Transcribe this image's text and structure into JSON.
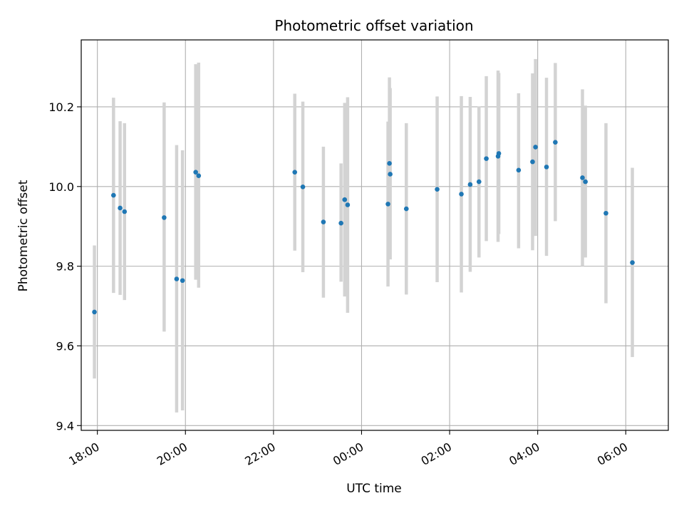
{
  "chart_data": {
    "type": "scatter",
    "title": "Photometric offset variation",
    "xlabel": "UTC time",
    "ylabel": "Photometric offset",
    "x_unit": "UTC time",
    "xlim": [
      "17:38",
      "06:58 (+1 day)"
    ],
    "ylim": [
      9.388,
      10.368
    ],
    "x_ticks": [
      "18:00",
      "20:00",
      "22:00",
      "00:00",
      "02:00",
      "04:00",
      "06:00"
    ],
    "y_ticks": [
      "9.4",
      "9.6",
      "9.8",
      "10.0",
      "10.2"
    ],
    "grid": true,
    "legend": "none",
    "colors": {
      "point": "#1f77b4",
      "errorbar": "#d3d3d3",
      "grid": "#b0b0b0"
    },
    "points": [
      {
        "x": "17:56",
        "y": 9.685,
        "lo": 9.518,
        "hi": 9.852
      },
      {
        "x": "18:22",
        "y": 9.978,
        "lo": 9.733,
        "hi": 10.223
      },
      {
        "x": "18:31",
        "y": 9.946,
        "lo": 9.728,
        "hi": 10.164
      },
      {
        "x": "18:37",
        "y": 9.937,
        "lo": 9.715,
        "hi": 10.159
      },
      {
        "x": "19:31",
        "y": 9.922,
        "lo": 9.636,
        "hi": 10.211
      },
      {
        "x": "19:48",
        "y": 9.768,
        "lo": 9.433,
        "hi": 10.104
      },
      {
        "x": "19:56",
        "y": 9.764,
        "lo": 9.438,
        "hi": 10.091
      },
      {
        "x": "20:14",
        "y": 10.036,
        "lo": 9.766,
        "hi": 10.307
      },
      {
        "x": "20:18",
        "y": 10.027,
        "lo": 9.746,
        "hi": 10.311
      },
      {
        "x": "22:29",
        "y": 10.036,
        "lo": 9.839,
        "hi": 10.233
      },
      {
        "x": "22:40",
        "y": 9.999,
        "lo": 9.785,
        "hi": 10.213
      },
      {
        "x": "23:08",
        "y": 9.911,
        "lo": 9.721,
        "hi": 10.1
      },
      {
        "x": "23:32",
        "y": 9.908,
        "lo": 9.761,
        "hi": 10.058
      },
      {
        "x": "23:37",
        "y": 9.967,
        "lo": 9.724,
        "hi": 10.21
      },
      {
        "x": "23:41",
        "y": 9.954,
        "lo": 9.683,
        "hi": 10.224
      },
      {
        "x": "00:36",
        "y": 9.956,
        "lo": 9.749,
        "hi": 10.163
      },
      {
        "x": "00:38",
        "y": 10.058,
        "lo": 9.842,
        "hi": 10.274
      },
      {
        "x": "00:39",
        "y": 10.031,
        "lo": 9.817,
        "hi": 10.247
      },
      {
        "x": "01:01",
        "y": 9.944,
        "lo": 9.729,
        "hi": 10.159
      },
      {
        "x": "01:43",
        "y": 9.993,
        "lo": 9.76,
        "hi": 10.226
      },
      {
        "x": "02:16",
        "y": 9.981,
        "lo": 9.734,
        "hi": 10.227
      },
      {
        "x": "02:28",
        "y": 10.005,
        "lo": 9.786,
        "hi": 10.225
      },
      {
        "x": "02:40",
        "y": 10.012,
        "lo": 9.822,
        "hi": 10.201
      },
      {
        "x": "02:50",
        "y": 10.07,
        "lo": 9.863,
        "hi": 10.277
      },
      {
        "x": "03:06",
        "y": 10.076,
        "lo": 9.861,
        "hi": 10.291
      },
      {
        "x": "03:07",
        "y": 10.083,
        "lo": 9.881,
        "hi": 10.285
      },
      {
        "x": "03:34",
        "y": 10.041,
        "lo": 9.845,
        "hi": 10.234
      },
      {
        "x": "03:53",
        "y": 10.062,
        "lo": 9.84,
        "hi": 10.284
      },
      {
        "x": "03:57",
        "y": 10.099,
        "lo": 9.876,
        "hi": 10.32
      },
      {
        "x": "04:12",
        "y": 10.049,
        "lo": 9.826,
        "hi": 10.273
      },
      {
        "x": "04:24",
        "y": 10.111,
        "lo": 9.913,
        "hi": 10.31
      },
      {
        "x": "05:01",
        "y": 10.022,
        "lo": 9.8,
        "hi": 10.244
      },
      {
        "x": "05:05",
        "y": 10.012,
        "lo": 9.822,
        "hi": 10.203
      },
      {
        "x": "05:33",
        "y": 9.933,
        "lo": 9.707,
        "hi": 10.159
      },
      {
        "x": "06:09",
        "y": 9.809,
        "lo": 9.572,
        "hi": 10.047
      }
    ]
  }
}
